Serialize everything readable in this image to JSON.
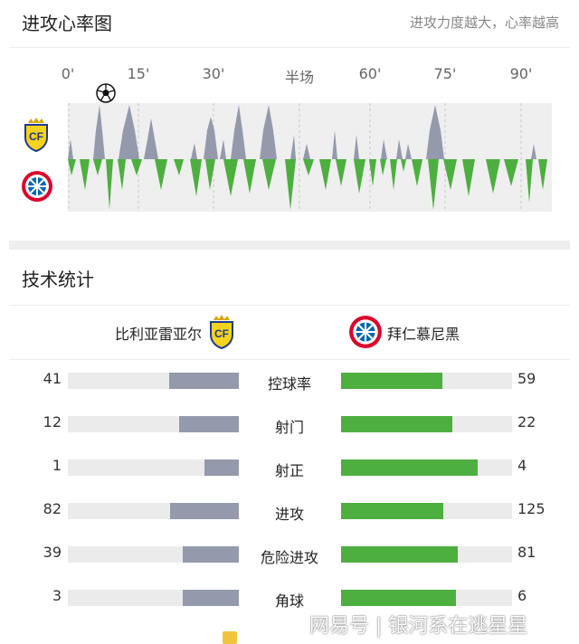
{
  "header": {
    "title": "进攻心率图",
    "subtitle": "进攻力度越大，心率越高"
  },
  "timeline": {
    "ticks": [
      "0'",
      "15'",
      "30'",
      "半场",
      "60'",
      "75'",
      "90'"
    ],
    "home_color": "#949aab",
    "away_color": "#4daf3f",
    "goal_icon": "soccer-ball-icon"
  },
  "stats_section": {
    "title": "技术统计"
  },
  "teams": {
    "home": {
      "name": "比利亚雷亚尔",
      "logo": "villarreal-crest-icon",
      "color": "#949aab"
    },
    "away": {
      "name": "拜仁慕尼黑",
      "logo": "bayern-crest-icon",
      "color": "#4daf3f"
    }
  },
  "stats": [
    {
      "label": "控球率",
      "home": "41",
      "away": "59",
      "home_share": 0.41,
      "away_share": 0.59
    },
    {
      "label": "射门",
      "home": "12",
      "away": "22",
      "home_share": 0.35,
      "away_share": 0.65
    },
    {
      "label": "射正",
      "home": "1",
      "away": "4",
      "home_share": 0.2,
      "away_share": 0.8
    },
    {
      "label": "进攻",
      "home": "82",
      "away": "125",
      "home_share": 0.4,
      "away_share": 0.6
    },
    {
      "label": "危险进攻",
      "home": "39",
      "away": "81",
      "home_share": 0.33,
      "away_share": 0.68
    },
    {
      "label": "角球",
      "home": "3",
      "away": "6",
      "home_share": 0.33,
      "away_share": 0.67
    }
  ],
  "watermark": "网易号 | 银河系在逃星星"
}
